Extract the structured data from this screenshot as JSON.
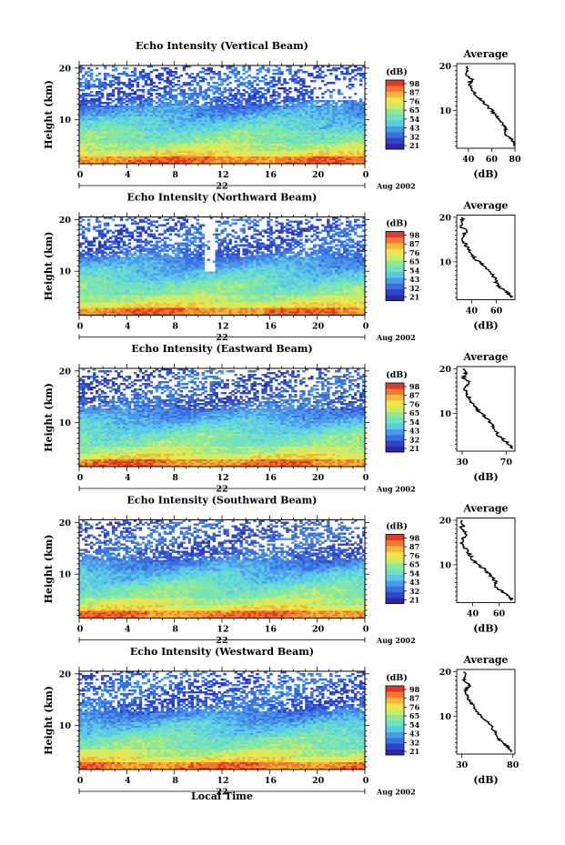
{
  "figure": {
    "xlabel_bottom": "Local Time"
  },
  "colors": {
    "colormap": [
      "#2a2a9e",
      "#2d46c8",
      "#3a6fe0",
      "#4a9ae8",
      "#5cc8e8",
      "#6ee0c6",
      "#8ee89a",
      "#c8ec6a",
      "#f2e44a",
      "#f5b838",
      "#ef7a30",
      "#e03a26"
    ],
    "background": "#ffffff",
    "axis": "#000000",
    "profile_line": "#000000"
  },
  "chart_data": [
    {
      "type": "heatmap",
      "title": "Echo Intensity (Vertical Beam)",
      "ylabel": "Height (km)",
      "xlim": [
        0,
        24
      ],
      "ylim": [
        1.5,
        20.5
      ],
      "x_ticks": [
        "0",
        "4",
        "8",
        "12",
        "16",
        "20",
        "0"
      ],
      "y_ticks": [
        "20",
        "10"
      ],
      "date_day": "22",
      "date_label": "Aug 2002",
      "colorbar": {
        "unit": "(dB)",
        "ticks": [
          "98",
          "87",
          "76",
          "65",
          "54",
          "43",
          "32",
          "21"
        ],
        "range": [
          21,
          98
        ]
      },
      "profile": {
        "title": "Average",
        "xlabel": "(dB)",
        "x_ticks": [
          "40",
          "60",
          "80"
        ],
        "xlim": [
          30,
          80
        ],
        "heights": [
          2,
          3,
          4,
          5,
          6,
          7,
          8,
          9,
          10,
          11,
          12,
          13,
          14,
          15,
          16,
          17,
          18,
          19,
          20
        ],
        "values": [
          80,
          79,
          75,
          70,
          72,
          70,
          66,
          63,
          60,
          56,
          52,
          48,
          45,
          42,
          41,
          43,
          37,
          40,
          38
        ]
      }
    },
    {
      "type": "heatmap",
      "title": "Echo Intensity (Northward Beam)",
      "ylabel": "Height (km)",
      "xlim": [
        0,
        24
      ],
      "ylim": [
        1.5,
        20.5
      ],
      "x_ticks": [
        "0",
        "4",
        "8",
        "12",
        "16",
        "20",
        "0"
      ],
      "y_ticks": [
        "20",
        "10"
      ],
      "date_day": "22",
      "date_label": "Aug 2002",
      "colorbar": {
        "unit": "(dB)",
        "ticks": [
          "98",
          "87",
          "76",
          "65",
          "54",
          "43",
          "32",
          "21"
        ],
        "range": [
          21,
          98
        ]
      },
      "profile": {
        "title": "Average",
        "xlabel": "(dB)",
        "x_ticks": [
          "40",
          "60"
        ],
        "xlim": [
          28,
          75
        ],
        "heights": [
          2,
          3,
          4,
          5,
          6,
          7,
          8,
          9,
          10,
          11,
          12,
          13,
          14,
          15,
          16,
          17,
          18,
          19,
          20
        ],
        "values": [
          72,
          70,
          64,
          60,
          60,
          57,
          54,
          51,
          46,
          42,
          40,
          37,
          35,
          33,
          33,
          36,
          31,
          33,
          32
        ]
      }
    },
    {
      "type": "heatmap",
      "title": "Echo Intensity (Eastward Beam)",
      "ylabel": "Height (km)",
      "xlim": [
        0,
        24
      ],
      "ylim": [
        1.5,
        20.5
      ],
      "x_ticks": [
        "0",
        "4",
        "8",
        "12",
        "16",
        "20",
        "0"
      ],
      "y_ticks": [
        "20",
        "10"
      ],
      "date_day": "22",
      "date_label": "Aug 2002",
      "colorbar": {
        "unit": "(dB)",
        "ticks": [
          "98",
          "87",
          "76",
          "65",
          "54",
          "43",
          "32",
          "21"
        ],
        "range": [
          21,
          98
        ]
      },
      "profile": {
        "title": "Average",
        "xlabel": "(dB)",
        "x_ticks": [
          "30",
          "70"
        ],
        "xlim": [
          25,
          78
        ],
        "heights": [
          2,
          3,
          4,
          5,
          6,
          7,
          8,
          9,
          10,
          11,
          12,
          13,
          14,
          15,
          16,
          17,
          18,
          19,
          20
        ],
        "values": [
          76,
          73,
          68,
          63,
          61,
          58,
          55,
          52,
          47,
          43,
          40,
          37,
          35,
          33,
          33,
          36,
          31,
          33,
          32
        ]
      }
    },
    {
      "type": "heatmap",
      "title": "Echo Intensity (Southward Beam)",
      "ylabel": "Height (km)",
      "xlim": [
        0,
        24
      ],
      "ylim": [
        1.5,
        20.5
      ],
      "x_ticks": [
        "0",
        "4",
        "8",
        "12",
        "16",
        "20",
        "0"
      ],
      "y_ticks": [
        "20",
        "10"
      ],
      "date_day": "22",
      "date_label": "Aug 2002",
      "colorbar": {
        "unit": "(dB)",
        "ticks": [
          "98",
          "87",
          "76",
          "65",
          "54",
          "43",
          "32",
          "21"
        ],
        "range": [
          21,
          98
        ]
      },
      "profile": {
        "title": "Average",
        "xlabel": "(dB)",
        "x_ticks": [
          "40",
          "60"
        ],
        "xlim": [
          28,
          72
        ],
        "heights": [
          2,
          3,
          4,
          5,
          6,
          7,
          8,
          9,
          10,
          11,
          12,
          13,
          14,
          15,
          16,
          17,
          18,
          19,
          20
        ],
        "values": [
          70,
          68,
          62,
          58,
          58,
          55,
          52,
          49,
          44,
          41,
          38,
          36,
          34,
          32,
          33,
          35,
          31,
          33,
          32
        ]
      }
    },
    {
      "type": "heatmap",
      "title": "Echo Intensity (Westward Beam)",
      "ylabel": "Height (km)",
      "xlim": [
        0,
        24
      ],
      "ylim": [
        1.5,
        20.5
      ],
      "x_ticks": [
        "0",
        "4",
        "8",
        "12",
        "16",
        "20",
        "0"
      ],
      "y_ticks": [
        "20",
        "10"
      ],
      "date_day": "22",
      "date_label": "Aug 2002",
      "colorbar": {
        "unit": "(dB)",
        "ticks": [
          "98",
          "87",
          "76",
          "65",
          "54",
          "43",
          "32",
          "21"
        ],
        "range": [
          21,
          98
        ]
      },
      "profile": {
        "title": "Average",
        "xlabel": "(dB)",
        "x_ticks": [
          "30",
          "80"
        ],
        "xlim": [
          25,
          82
        ],
        "heights": [
          2,
          3,
          4,
          5,
          6,
          7,
          8,
          9,
          10,
          11,
          12,
          13,
          14,
          15,
          16,
          17,
          18,
          19,
          20
        ],
        "values": [
          78,
          76,
          70,
          66,
          64,
          61,
          58,
          54,
          49,
          45,
          42,
          39,
          36,
          34,
          34,
          38,
          32,
          34,
          33
        ]
      }
    }
  ]
}
